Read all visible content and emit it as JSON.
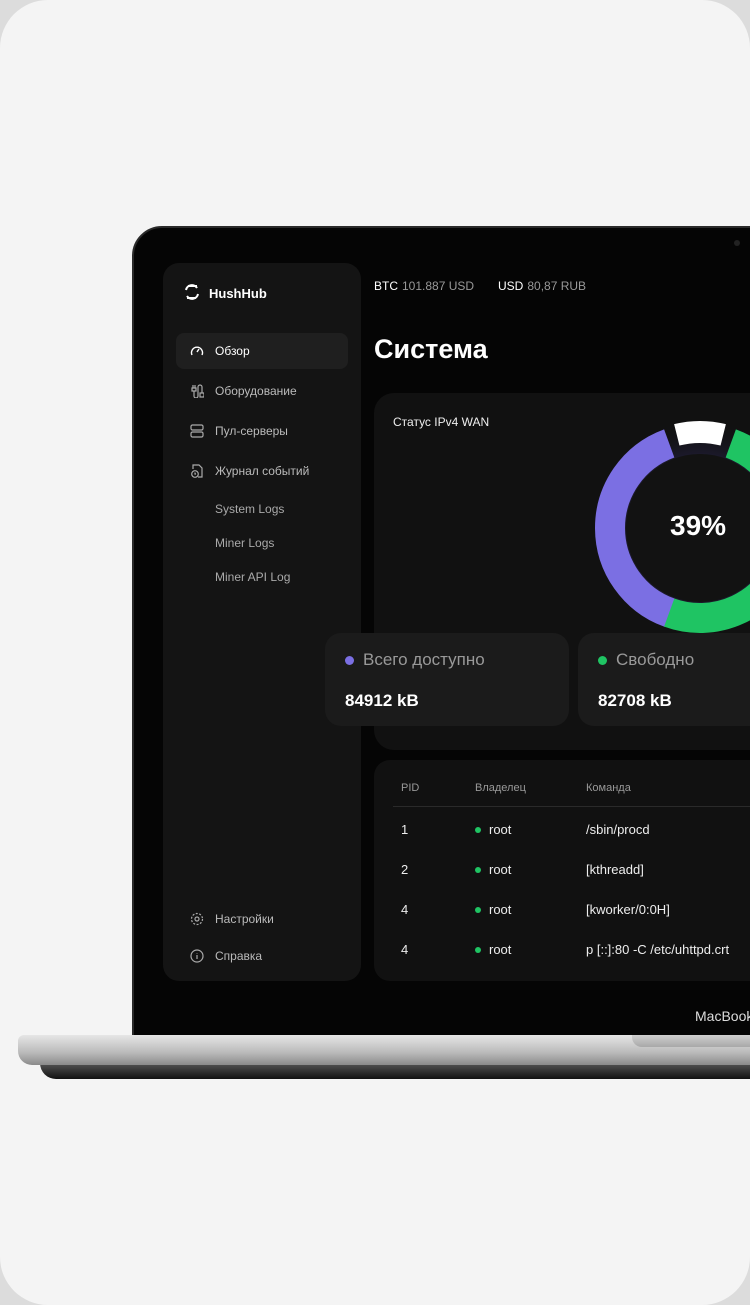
{
  "app": {
    "name": "HushHub"
  },
  "sidebar": {
    "items": [
      {
        "label": "Обзор",
        "icon": "gauge-icon",
        "active": true
      },
      {
        "label": "Оборудование",
        "icon": "hardware-icon"
      },
      {
        "label": "Пул-серверы",
        "icon": "server-icon"
      },
      {
        "label": "Журнал событий",
        "icon": "log-icon"
      }
    ],
    "subitems": [
      "System Logs",
      "Miner Logs",
      "Miner API Log"
    ],
    "bottom": [
      {
        "label": "Настройки",
        "icon": "gear-icon"
      },
      {
        "label": "Справка",
        "icon": "info-icon"
      }
    ]
  },
  "ticker": [
    {
      "sym": "BTC",
      "val": "101.887 USD"
    },
    {
      "sym": "USD",
      "val": "80,87 RUB"
    }
  ],
  "page_title": "Система",
  "wan": {
    "title": "Статус IPv4 WAN",
    "percent_label": "39%",
    "percent": 39,
    "colors": {
      "used": "#7b6fe3",
      "mid": "#ffffff",
      "free": "#1fc463"
    },
    "stats": [
      {
        "label": "Всего доступно",
        "value": "84912 kB",
        "color": "#7b6fe3"
      },
      {
        "label": "Свободно",
        "value": "82708 kB",
        "color": "#1fc463"
      }
    ]
  },
  "table": {
    "headers": [
      "PID",
      "Владелец",
      "Команда"
    ],
    "rows": [
      [
        "1",
        "root",
        "/sbin/procd"
      ],
      [
        "2",
        "root",
        "[kthreadd]"
      ],
      [
        "4",
        "root",
        "[kworker/0:0H]"
      ],
      [
        "4",
        "root",
        "p [::]:80 -C /etc/uhttpd.crt"
      ]
    ]
  },
  "device": {
    "brand": "MacBook"
  }
}
